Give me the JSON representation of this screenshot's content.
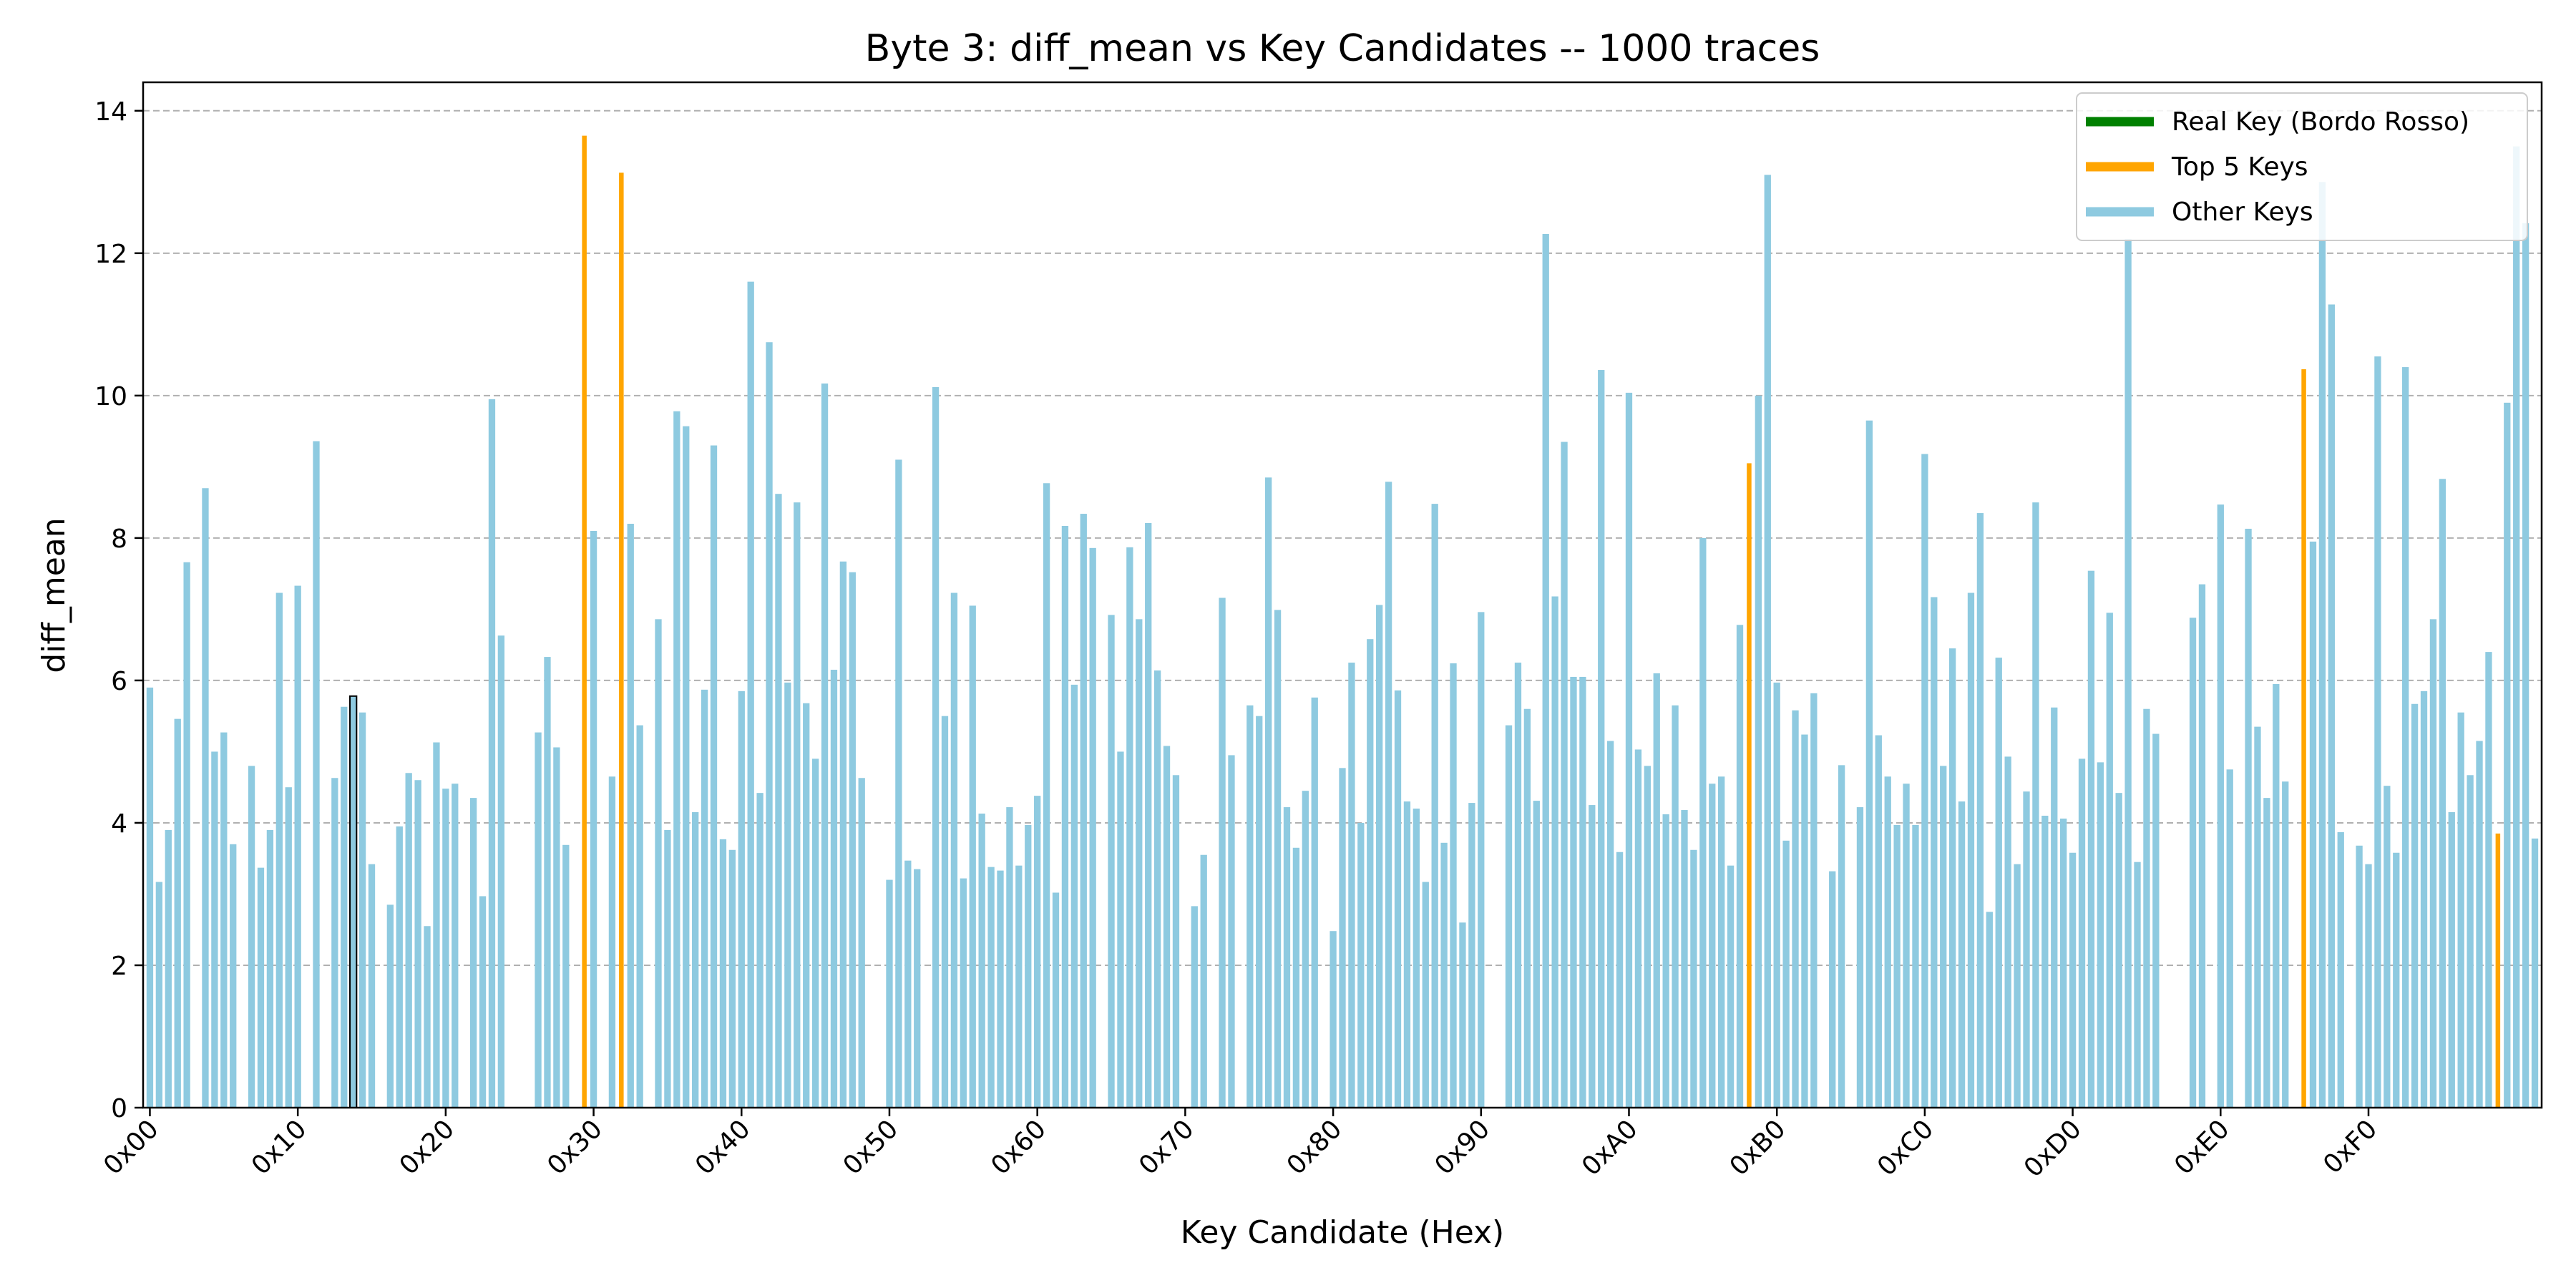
{
  "chart_data": {
    "type": "bar",
    "title": "Byte 3: diff_mean vs Key Candidates -- 1000 traces",
    "xlabel": "Key Candidate (Hex)",
    "ylabel": "diff_mean",
    "ylim": [
      0,
      14.4
    ],
    "yticks": [
      0,
      2,
      4,
      6,
      8,
      10,
      12,
      14
    ],
    "xticks": [
      "0x00",
      "0x10",
      "0x20",
      "0x30",
      "0x40",
      "0x50",
      "0x60",
      "0x70",
      "0x80",
      "0x90",
      "0xA0",
      "0xB0",
      "0xC0",
      "0xD0",
      "0xE0",
      "0xF0"
    ],
    "xticks_positions": [
      0,
      16,
      32,
      48,
      64,
      80,
      96,
      112,
      128,
      144,
      160,
      176,
      192,
      208,
      224,
      240
    ],
    "grid": "y, dashed",
    "legend_position": "top-right",
    "colors": {
      "real": "#008000",
      "top": "#FFA500",
      "other": "#8ECAE0",
      "highlight_edge": "#000000"
    },
    "legend": [
      {
        "label": "Real Key (Bordo Rosso)",
        "color": "#008000"
      },
      {
        "label": "Top 5 Keys",
        "color": "#FFA500"
      },
      {
        "label": "Other Keys",
        "color": "#8ECAE0"
      }
    ],
    "real_key_index": 22,
    "top5_indices": [
      47,
      51,
      173,
      233,
      254
    ],
    "values": [
      5.9,
      3.17,
      3.9,
      5.46,
      7.66,
      0,
      8.7,
      5.0,
      5.27,
      3.7,
      0,
      4.8,
      3.37,
      3.9,
      7.23,
      4.5,
      7.33,
      0,
      9.36,
      0,
      4.63,
      5.63,
      5.78,
      5.55,
      3.42,
      0,
      2.85,
      3.95,
      4.7,
      4.6,
      2.55,
      5.13,
      4.48,
      4.55,
      0,
      4.35,
      2.97,
      9.95,
      6.63,
      0,
      0,
      0,
      5.27,
      6.33,
      5.06,
      3.69,
      0,
      13.65,
      8.1,
      0,
      4.65,
      13.13,
      8.2,
      5.37,
      0,
      6.86,
      3.9,
      9.78,
      9.57,
      4.15,
      5.87,
      9.3,
      3.77,
      3.62,
      5.85,
      11.6,
      4.42,
      10.75,
      8.62,
      5.97,
      8.5,
      5.68,
      4.9,
      10.17,
      6.15,
      7.67,
      7.52,
      4.63,
      0,
      0,
      3.2,
      9.1,
      3.47,
      3.35,
      0,
      10.12,
      5.5,
      7.23,
      3.22,
      7.05,
      4.13,
      3.38,
      3.33,
      4.22,
      3.4,
      3.97,
      4.38,
      8.77,
      3.02,
      8.17,
      5.94,
      8.34,
      7.86,
      0,
      6.92,
      5.0,
      7.87,
      6.86,
      8.21,
      6.14,
      5.08,
      4.67,
      0,
      2.83,
      3.55,
      0,
      7.16,
      4.95,
      0,
      5.65,
      5.5,
      8.85,
      6.99,
      4.22,
      3.65,
      4.45,
      5.76,
      0,
      2.48,
      4.77,
      6.25,
      4.0,
      6.58,
      7.06,
      8.79,
      5.86,
      4.3,
      4.2,
      3.17,
      8.48,
      3.72,
      6.24,
      2.6,
      4.28,
      6.96,
      0,
      0,
      5.37,
      6.25,
      5.6,
      4.31,
      12.27,
      7.18,
      9.35,
      6.05,
      6.05,
      4.25,
      10.36,
      5.15,
      3.59,
      10.04,
      5.03,
      4.8,
      6.1,
      4.12,
      5.65,
      4.18,
      3.62,
      8.0,
      4.55,
      4.65,
      3.4,
      6.78,
      9.05,
      10.0,
      13.1,
      5.97,
      3.75,
      5.58,
      5.24,
      5.82,
      0,
      3.32,
      4.81,
      0,
      4.22,
      9.65,
      5.23,
      4.65,
      3.97,
      4.55,
      3.97,
      9.18,
      7.17,
      4.8,
      6.45,
      4.3,
      7.23,
      8.35,
      2.75,
      6.32,
      4.93,
      3.42,
      4.44,
      8.5,
      4.1,
      5.62,
      4.06,
      3.58,
      4.9,
      7.54,
      4.85,
      6.95,
      4.42,
      12.2,
      3.45,
      5.6,
      5.25,
      0,
      0,
      0,
      6.88,
      7.35,
      0,
      8.47,
      4.75,
      0,
      8.13,
      5.35,
      4.35,
      5.95,
      4.58,
      0,
      10.37,
      7.95,
      13.0,
      11.28,
      3.87,
      0,
      3.68,
      3.42,
      10.55,
      4.52,
      3.58,
      10.4,
      5.67,
      5.85,
      6.86,
      8.83,
      4.15,
      5.55,
      4.67,
      5.15,
      6.4,
      3.85,
      9.9,
      13.5,
      12.42,
      3.78
    ]
  }
}
